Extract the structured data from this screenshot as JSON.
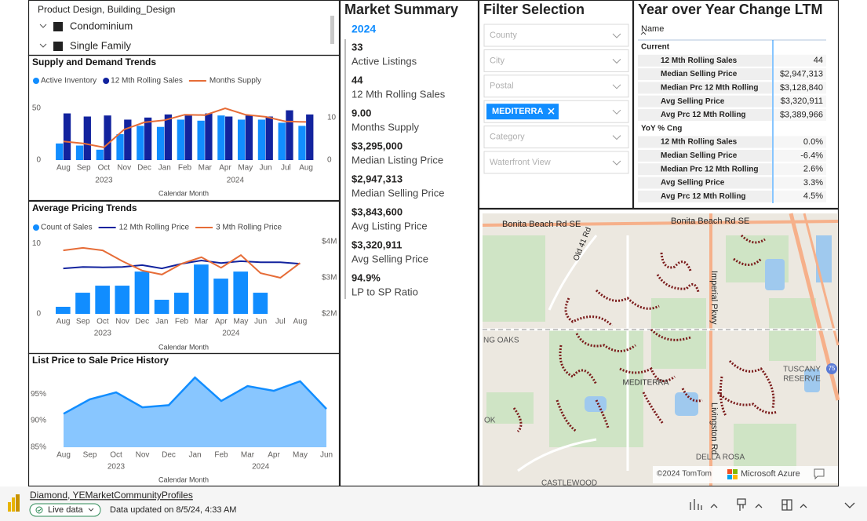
{
  "slicer": {
    "title": "Product Design, Building_Design",
    "items": [
      "Condominium",
      "Single Family"
    ]
  },
  "chart_data": [
    {
      "type": "combo",
      "title": "Supply and Demand Trends",
      "x_label": "Calendar Month",
      "categories": [
        "Aug",
        "Sep",
        "Oct",
        "Nov",
        "Dec",
        "Jan",
        "Feb",
        "Mar",
        "Apr",
        "May",
        "Jun",
        "Jul",
        "Aug"
      ],
      "category_years": [
        "2023",
        "2023",
        "2023",
        "2023",
        "2023",
        "2024",
        "2024",
        "2024",
        "2024",
        "2024",
        "2024",
        "2024",
        "2024"
      ],
      "ylim": [
        0,
        56
      ],
      "yticks": [
        0,
        50
      ],
      "y2lim": [
        0,
        13.7
      ],
      "y2ticks": [
        0,
        10
      ],
      "series": [
        {
          "name": "Active Inventory",
          "kind": "bar",
          "color": "#118dff",
          "values": [
            16,
            14,
            10,
            25,
            33,
            32,
            39,
            38,
            43,
            39,
            39,
            36,
            33
          ]
        },
        {
          "name": "12 Mth Rolling Sales",
          "kind": "bar",
          "color": "#12239e",
          "values": [
            45,
            42,
            43,
            39,
            41,
            44,
            43,
            45,
            42,
            43,
            42,
            48,
            44
          ]
        },
        {
          "name": "Months Supply",
          "kind": "line",
          "axis": "y2",
          "color": "#e66c37",
          "values": [
            4.4,
            3.9,
            3.0,
            7.2,
            8.9,
            9.4,
            10.7,
            10.6,
            12.2,
            10.7,
            10.2,
            9.1,
            9.0
          ]
        }
      ]
    },
    {
      "type": "combo",
      "title": "Average Pricing Trends",
      "x_label": "Calendar Month",
      "categories": [
        "Aug",
        "Sep",
        "Oct",
        "Nov",
        "Dec",
        "Jan",
        "Feb",
        "Mar",
        "Apr",
        "May",
        "Jun",
        "Jul",
        "Aug"
      ],
      "category_years": [
        "2023",
        "2023",
        "2023",
        "2023",
        "2023",
        "2024",
        "2024",
        "2024",
        "2024",
        "2024",
        "2024",
        "2024",
        "2024"
      ],
      "ylim": [
        0,
        10.8
      ],
      "yticks": [
        0,
        10
      ],
      "y2lim": [
        2000000,
        4110000
      ],
      "y2ticks": [
        {
          "value": 2000000,
          "label": "$2M"
        },
        {
          "value": 3000000,
          "label": "$3M"
        },
        {
          "value": 4000000,
          "label": "$4M"
        }
      ],
      "series": [
        {
          "name": "Count of Sales",
          "kind": "bar",
          "color": "#118dff",
          "values": [
            1,
            3,
            4,
            4,
            6,
            2,
            3,
            7,
            5,
            6,
            3,
            null,
            null
          ]
        },
        {
          "name": "12 Mth Rolling Price",
          "kind": "line",
          "axis": "y2",
          "color": "#12239e",
          "values": [
            3260000,
            3300000,
            3290000,
            3300000,
            3350000,
            3260000,
            3390000,
            3480000,
            3410000,
            3460000,
            3430000,
            3430000,
            3390000
          ]
        },
        {
          "name": "3 Mth Rolling Price",
          "kind": "line",
          "axis": "y2",
          "color": "#e66c37",
          "values": [
            3760000,
            3830000,
            3760000,
            3460000,
            3200000,
            3090000,
            3390000,
            3570000,
            3280000,
            3630000,
            3130000,
            3000000,
            3410000
          ]
        }
      ]
    },
    {
      "type": "area",
      "title": "List Price to Sale Price History",
      "x_label": "Calendar Month",
      "categories": [
        "Aug",
        "Sep",
        "Oct",
        "Nov",
        "Dec",
        "Jan",
        "Feb",
        "Mar",
        "Apr",
        "May",
        "Jun"
      ],
      "category_years": [
        "2023",
        "2023",
        "2023",
        "2023",
        "2023",
        "2024",
        "2024",
        "2024",
        "2024",
        "2024",
        "2024"
      ],
      "ylim": [
        85,
        99
      ],
      "yticks": [
        {
          "value": 85,
          "label": "85%"
        },
        {
          "value": 90,
          "label": "90%"
        },
        {
          "value": 95,
          "label": "95%"
        }
      ],
      "color": "#118dff",
      "values": [
        91.3,
        94.0,
        95.3,
        92.5,
        92.9,
        98.1,
        93.7,
        96.5,
        95.6,
        97.4,
        92.2
      ]
    }
  ],
  "market_summary": {
    "title": "Market Summary",
    "year": "2024",
    "items": [
      {
        "value": "33",
        "label": "Active Listings"
      },
      {
        "value": "44",
        "label": "12 Mth Rolling Sales"
      },
      {
        "value": "9.00",
        "label": "Months Supply"
      },
      {
        "value": "$3,295,000",
        "label": "Median Listing Price"
      },
      {
        "value": "$2,947,313",
        "label": "Median Selling Price"
      },
      {
        "value": "$3,843,600",
        "label": "Avg Listing Price"
      },
      {
        "value": "$3,320,911",
        "label": "Avg Selling Price"
      },
      {
        "value": "94.9%",
        "label": "LP to SP Ratio"
      }
    ]
  },
  "filters": {
    "title": "Filter Selection",
    "dropdowns": [
      {
        "label": "County"
      },
      {
        "label": "City"
      },
      {
        "label": "Postal"
      },
      {
        "chip": "MEDITERRA"
      },
      {
        "label": "Category"
      },
      {
        "label": "Waterfront View"
      }
    ]
  },
  "yoy": {
    "title": "Year over Year Change LTM",
    "column_header": "Name",
    "sections": [
      {
        "name": "Current",
        "rows": [
          {
            "label": "12 Mth Rolling Sales",
            "value": "44"
          },
          {
            "label": "Median Selling Price",
            "value": "$2,947,313"
          },
          {
            "label": "Median Prc 12 Mth Rolling",
            "value": "$3,128,840"
          },
          {
            "label": "Avg Selling Price",
            "value": "$3,320,911"
          },
          {
            "label": "Avg Prc 12 Mth Rolling",
            "value": "$3,389,966"
          }
        ]
      },
      {
        "name": "YoY % Cng",
        "rows": [
          {
            "label": "12 Mth Rolling Sales",
            "value": "0.0%"
          },
          {
            "label": "Median Selling Price",
            "value": "-6.4%"
          },
          {
            "label": "Median Prc 12 Mth Rolling",
            "value": "2.6%"
          },
          {
            "label": "Avg Selling Price",
            "value": "3.3%"
          },
          {
            "label": "Avg Prc 12 Mth Rolling",
            "value": "4.5%"
          }
        ]
      }
    ]
  },
  "map": {
    "labels": [
      "Bonita Beach Rd SE",
      "Bonita Beach Rd SE",
      "Old 41 Rd",
      "Imperial Pkwy",
      "Livingston Rd",
      "NG OAKS",
      "MEDITERRA",
      "TUSCANY",
      "RESERVE",
      "DELLA ROSA",
      "OK",
      "CASTLEWOOD",
      "75"
    ],
    "attribution": "©2024 TomTom",
    "provider": "Microsoft Azure"
  },
  "footer": {
    "report": "Diamond, YEMarketCommunityProfiles",
    "status": "Live data",
    "updated": "Data updated on 8/5/24, 4:33 AM"
  }
}
